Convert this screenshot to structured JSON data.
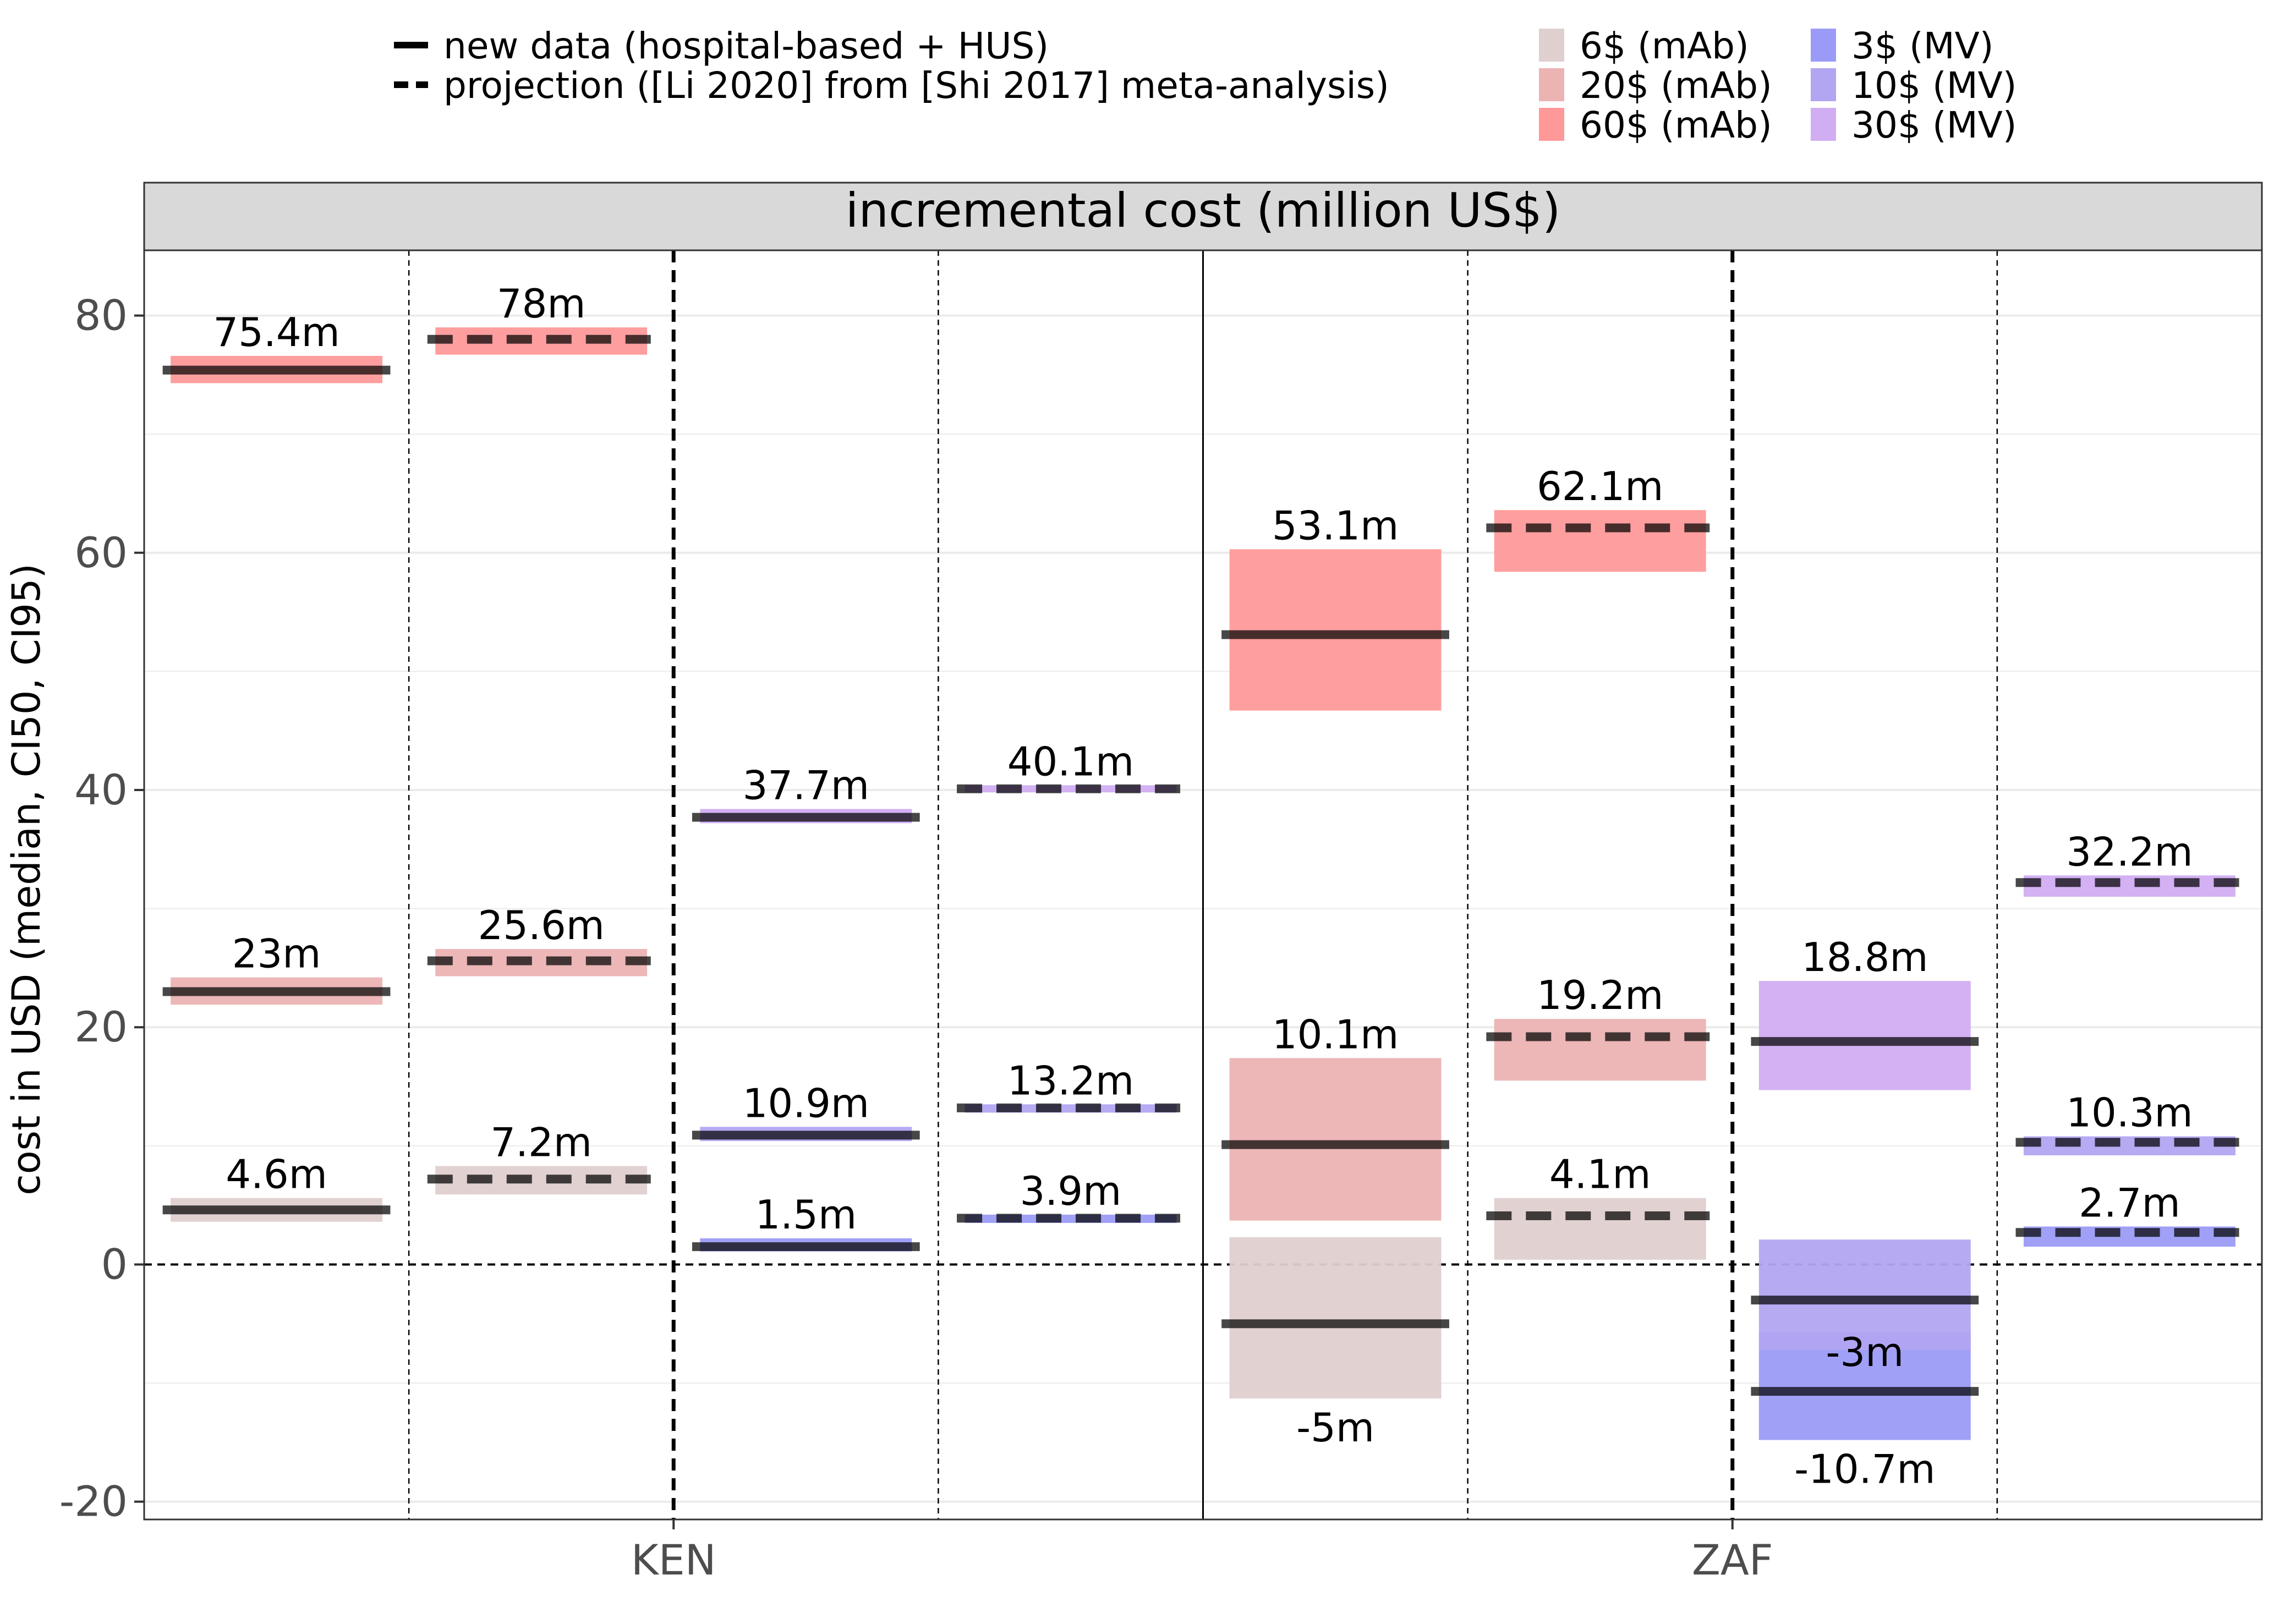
{
  "chart_data": {
    "type": "crossbar",
    "title": "incremental cost (million US$)",
    "ylabel": "cost in USD (median, CI50, CI95)",
    "xlabel": "",
    "countries": [
      "KEN",
      "ZAF"
    ],
    "ylim": [
      -21.5,
      85.5
    ],
    "yticks": [
      -20,
      0,
      20,
      40,
      60,
      80
    ],
    "ytick_labels": [
      "-20",
      "0",
      "20",
      "40",
      "60",
      "80"
    ],
    "grid": true,
    "legend_position": "top",
    "line_legend": [
      {
        "label": "new data (hospital-based + HUS)",
        "style": "solid"
      },
      {
        "label": "projection ([Li 2020] from [Shi 2017] meta-analysis)",
        "style": "dashed"
      }
    ],
    "fill_legend": [
      {
        "label": "6$ (mAb)",
        "color": "#dfcfcf"
      },
      {
        "label": "20$ (mAb)",
        "color": "#ecb3b3"
      },
      {
        "label": "60$ (mAb)",
        "color": "#ff9999"
      },
      {
        "label": "3$ (MV)",
        "color": "#9b9bf7"
      },
      {
        "label": "10$ (MV)",
        "color": "#b2a5f2"
      },
      {
        "label": "30$ (MV)",
        "color": "#d1adf2"
      }
    ],
    "series": [
      {
        "country": "KEN",
        "group": "mAb",
        "data": "new data",
        "price": "6$ (mAb)",
        "median": 4.6,
        "label": "4.6m",
        "low": 3.6,
        "high": 5.6
      },
      {
        "country": "KEN",
        "group": "mAb",
        "data": "new data",
        "price": "20$ (mAb)",
        "median": 23,
        "label": "23m",
        "low": 21.9,
        "high": 24.2
      },
      {
        "country": "KEN",
        "group": "mAb",
        "data": "new data",
        "price": "60$ (mAb)",
        "median": 75.4,
        "label": "75.4m",
        "low": 74.3,
        "high": 76.6
      },
      {
        "country": "KEN",
        "group": "mAb",
        "data": "projection",
        "price": "6$ (mAb)",
        "median": 7.2,
        "label": "7.2m",
        "low": 5.9,
        "high": 8.3
      },
      {
        "country": "KEN",
        "group": "mAb",
        "data": "projection",
        "price": "20$ (mAb)",
        "median": 25.6,
        "label": "25.6m",
        "low": 24.3,
        "high": 26.6
      },
      {
        "country": "KEN",
        "group": "mAb",
        "data": "projection",
        "price": "60$ (mAb)",
        "median": 78,
        "label": "78m",
        "low": 76.7,
        "high": 79.0
      },
      {
        "country": "KEN",
        "group": "MV",
        "data": "new data",
        "price": "3$ (MV)",
        "median": 1.5,
        "label": "1.5m",
        "low": 1.1,
        "high": 2.2
      },
      {
        "country": "KEN",
        "group": "MV",
        "data": "new data",
        "price": "10$ (MV)",
        "median": 10.9,
        "label": "10.9m",
        "low": 10.4,
        "high": 11.6
      },
      {
        "country": "KEN",
        "group": "MV",
        "data": "new data",
        "price": "30$ (MV)",
        "median": 37.7,
        "label": "37.7m",
        "low": 37.2,
        "high": 38.4
      },
      {
        "country": "KEN",
        "group": "MV",
        "data": "projection",
        "price": "3$ (MV)",
        "median": 3.9,
        "label": "3.9m",
        "low": 3.5,
        "high": 4.2
      },
      {
        "country": "KEN",
        "group": "MV",
        "data": "projection",
        "price": "10$ (MV)",
        "median": 13.2,
        "label": "13.2m",
        "low": 12.8,
        "high": 13.5
      },
      {
        "country": "KEN",
        "group": "MV",
        "data": "projection",
        "price": "30$ (MV)",
        "median": 40.1,
        "label": "40.1m",
        "low": 39.8,
        "high": 40.4
      },
      {
        "country": "ZAF",
        "group": "mAb",
        "data": "new data",
        "price": "6$ (mAb)",
        "median": -5,
        "label": "-5m",
        "low": -11.3,
        "high": 2.3
      },
      {
        "country": "ZAF",
        "group": "mAb",
        "data": "new data",
        "price": "20$ (mAb)",
        "median": 10.1,
        "label": "10.1m",
        "low": 3.7,
        "high": 17.4
      },
      {
        "country": "ZAF",
        "group": "mAb",
        "data": "new data",
        "price": "60$ (mAb)",
        "median": 53.1,
        "label": "53.1m",
        "low": 46.7,
        "high": 60.3
      },
      {
        "country": "ZAF",
        "group": "mAb",
        "data": "projection",
        "price": "6$ (mAb)",
        "median": 4.1,
        "label": "4.1m",
        "low": 0.4,
        "high": 5.6
      },
      {
        "country": "ZAF",
        "group": "mAb",
        "data": "projection",
        "price": "20$ (mAb)",
        "median": 19.2,
        "label": "19.2m",
        "low": 15.5,
        "high": 20.7
      },
      {
        "country": "ZAF",
        "group": "mAb",
        "data": "projection",
        "price": "60$ (mAb)",
        "median": 62.1,
        "label": "62.1m",
        "low": 58.4,
        "high": 63.6
      },
      {
        "country": "ZAF",
        "group": "MV",
        "data": "new data",
        "price": "3$ (MV)",
        "median": -10.7,
        "label": "-10.7m",
        "low": -14.8,
        "high": -5.7
      },
      {
        "country": "ZAF",
        "group": "MV",
        "data": "new data",
        "price": "10$ (MV)",
        "median": -3,
        "label": "-3m",
        "low": -7.2,
        "high": 2.1
      },
      {
        "country": "ZAF",
        "group": "MV",
        "data": "new data",
        "price": "30$ (MV)",
        "median": 18.8,
        "label": "18.8m",
        "low": 14.7,
        "high": 23.9
      },
      {
        "country": "ZAF",
        "group": "MV",
        "data": "projection",
        "price": "3$ (MV)",
        "median": 2.7,
        "label": "2.7m",
        "low": 1.5,
        "high": 3.2
      },
      {
        "country": "ZAF",
        "group": "MV",
        "data": "projection",
        "price": "10$ (MV)",
        "median": 10.3,
        "label": "10.3m",
        "low": 9.2,
        "high": 10.8
      },
      {
        "country": "ZAF",
        "group": "MV",
        "data": "projection",
        "price": "30$ (MV)",
        "median": 32.2,
        "label": "32.2m",
        "low": 31.0,
        "high": 32.8
      }
    ]
  },
  "colors": {
    "panel_border": "#333333",
    "strip_fill": "#d9d9d9",
    "grid": "#ebebeb",
    "median_line": "#000000"
  }
}
